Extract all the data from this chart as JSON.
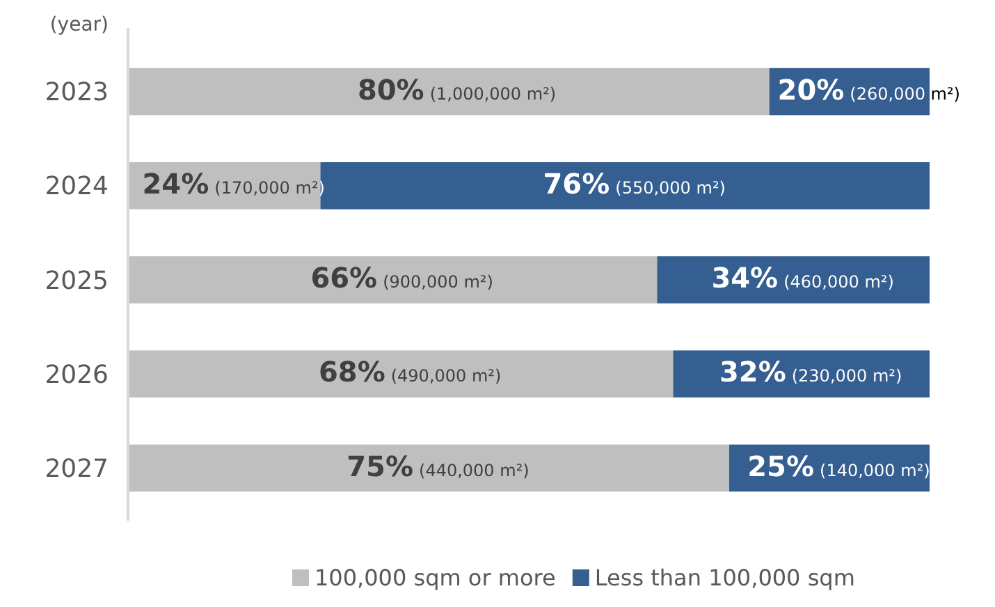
{
  "chart_data": {
    "type": "bar",
    "orientation": "horizontal",
    "stacked": true,
    "ylabel": "(year)",
    "categories": [
      "2023",
      "2024",
      "2025",
      "2026",
      "2027"
    ],
    "legend": "bottom",
    "series": [
      {
        "name": "100,000 sqm or more",
        "color": "#bfbfbf",
        "values": [
          80,
          24,
          66,
          68,
          75
        ],
        "value_labels": [
          "80% (1,000,000 m²)",
          "24% (170,000 m²)",
          "66% (900,000 m²)",
          "68% (490,000 m²)",
          "75% (440,000 m²)"
        ]
      },
      {
        "name": "Less than 100,000 sqm",
        "color": "#365f91",
        "values": [
          20,
          76,
          34,
          32,
          25
        ],
        "value_labels": [
          "20% (260,000 m²)",
          "76% (550,000 m²)",
          "34% (460,000 m²)",
          "32% (230,000 m²)",
          "25% (140,000 m²)"
        ]
      }
    ]
  }
}
